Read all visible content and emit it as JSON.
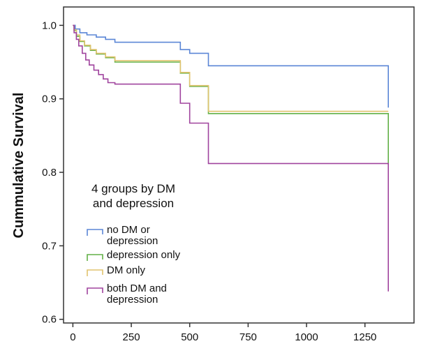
{
  "chart_data": {
    "type": "line",
    "step": true,
    "title": "",
    "xlabel": "",
    "ylabel": "Cummulative Survival",
    "xlim": [
      -40,
      1460
    ],
    "ylim": [
      0.595,
      1.025
    ],
    "xticks": [
      0,
      250,
      500,
      750,
      1000,
      1250
    ],
    "xtick_labels": [
      "0",
      "250",
      "500",
      "750",
      "1000",
      "1250"
    ],
    "yticks": [
      0.6,
      0.7,
      0.8,
      0.9,
      1.0
    ],
    "ytick_labels": [
      "0.6",
      "0.7",
      "0.8",
      "0.9",
      "1.0"
    ],
    "grid": false,
    "legend": {
      "title_lines": [
        "4 groups by DM",
        "and depression"
      ],
      "placement": "lower-left"
    },
    "series": [
      {
        "name_lines": [
          "no DM or",
          "depression"
        ],
        "color": "#5b86d6",
        "x": [
          0,
          10,
          30,
          60,
          100,
          140,
          180,
          450,
          460,
          480,
          500,
          570,
          580,
          1350,
          1350
        ],
        "y": [
          1.0,
          0.995,
          0.99,
          0.987,
          0.984,
          0.981,
          0.977,
          0.977,
          0.967,
          0.967,
          0.962,
          0.962,
          0.945,
          0.945,
          0.888
        ]
      },
      {
        "name_lines": [
          "depression only"
        ],
        "color": "#62b046",
        "x": [
          0,
          5,
          15,
          30,
          50,
          75,
          100,
          140,
          180,
          450,
          460,
          490,
          500,
          570,
          580,
          1350,
          1350
        ],
        "y": [
          1.0,
          0.993,
          0.985,
          0.978,
          0.972,
          0.966,
          0.961,
          0.956,
          0.95,
          0.95,
          0.935,
          0.935,
          0.917,
          0.917,
          0.88,
          0.88,
          0.81
        ]
      },
      {
        "name_lines": [
          "DM only"
        ],
        "color": "#e1c36e",
        "x": [
          0,
          5,
          15,
          30,
          50,
          75,
          100,
          140,
          180,
          450,
          460,
          490,
          500,
          570,
          580,
          1350
        ],
        "y": [
          1.0,
          0.994,
          0.987,
          0.979,
          0.973,
          0.967,
          0.962,
          0.957,
          0.952,
          0.952,
          0.936,
          0.936,
          0.918,
          0.918,
          0.883,
          0.883
        ]
      },
      {
        "name_lines": [
          "both DM and",
          "depression"
        ],
        "color": "#a0449e",
        "x": [
          0,
          5,
          15,
          25,
          40,
          55,
          70,
          90,
          110,
          130,
          150,
          180,
          450,
          460,
          480,
          500,
          570,
          580,
          1350,
          1350
        ],
        "y": [
          1.0,
          0.99,
          0.981,
          0.972,
          0.962,
          0.953,
          0.946,
          0.939,
          0.933,
          0.927,
          0.922,
          0.92,
          0.92,
          0.894,
          0.894,
          0.867,
          0.867,
          0.812,
          0.812,
          0.638
        ]
      }
    ]
  }
}
